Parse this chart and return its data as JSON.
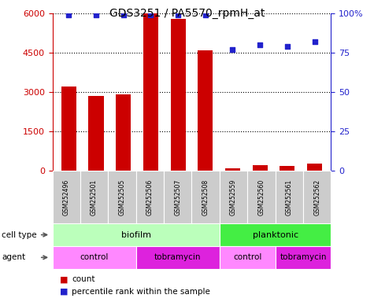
{
  "title": "GDS3251 / PA5570_rpmH_at",
  "samples": [
    "GSM252496",
    "GSM252501",
    "GSM252505",
    "GSM252506",
    "GSM252507",
    "GSM252508",
    "GSM252559",
    "GSM252560",
    "GSM252561",
    "GSM252562"
  ],
  "counts": [
    3200,
    2850,
    2900,
    6000,
    5800,
    4600,
    100,
    200,
    170,
    280
  ],
  "percentile_ranks": [
    99,
    99,
    99,
    99,
    99,
    99,
    77,
    80,
    79,
    82
  ],
  "ylim_left": [
    0,
    6000
  ],
  "ylim_right": [
    0,
    100
  ],
  "yticks_left": [
    0,
    1500,
    3000,
    4500,
    6000
  ],
  "yticks_right": [
    0,
    25,
    50,
    75,
    100
  ],
  "ytick_labels_right": [
    "0",
    "25",
    "50",
    "75",
    "100%"
  ],
  "bar_color": "#cc0000",
  "dot_color": "#2222cc",
  "cell_type_groups": [
    {
      "label": "biofilm",
      "start": 0,
      "end": 5,
      "color": "#bbffbb"
    },
    {
      "label": "planktonic",
      "start": 6,
      "end": 9,
      "color": "#44ee44"
    }
  ],
  "agent_groups": [
    {
      "label": "control",
      "start": 0,
      "end": 2,
      "color": "#ff88ff"
    },
    {
      "label": "tobramycin",
      "start": 3,
      "end": 5,
      "color": "#dd22dd"
    },
    {
      "label": "control",
      "start": 6,
      "end": 7,
      "color": "#ff88ff"
    },
    {
      "label": "tobramycin",
      "start": 8,
      "end": 9,
      "color": "#dd22dd"
    }
  ],
  "tick_label_color_left": "#cc0000",
  "tick_label_color_right": "#2222cc",
  "grid_color": "black",
  "sample_bg_color": "#cccccc",
  "fig_width": 4.75,
  "fig_height": 3.84,
  "dpi": 100
}
